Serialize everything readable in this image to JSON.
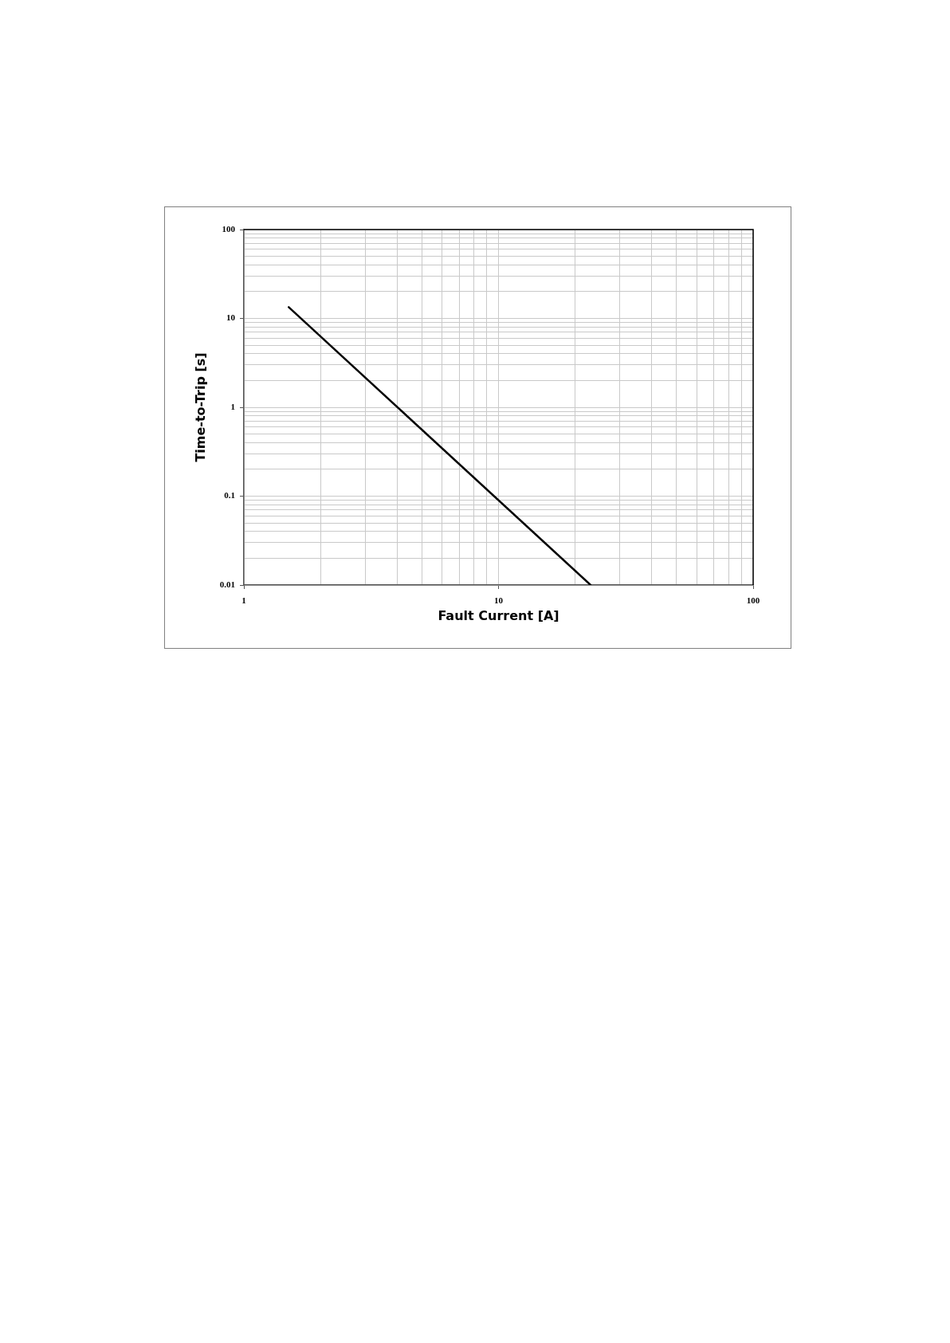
{
  "chart_data": {
    "type": "line",
    "xlabel": "Fault Current [A]",
    "ylabel": "Time-to-Trip [s]",
    "x": [
      1.5,
      23
    ],
    "series": [
      {
        "color": "#000000",
        "values": [
          13.4,
          0.01
        ]
      }
    ],
    "log": "xy",
    "xlim": [
      1,
      100
    ],
    "ylim": [
      0.01,
      100
    ],
    "xticks": [
      1,
      {
        "value": 2,
        "label": null
      },
      {
        "value": 3,
        "label": null
      },
      {
        "value": 4,
        "label": null
      },
      {
        "value": 5,
        "label": null
      },
      {
        "value": 6,
        "label": null
      },
      {
        "value": 7,
        "label": null
      },
      {
        "value": 8,
        "label": null
      },
      {
        "value": 9,
        "label": null
      },
      10,
      {
        "value": 20,
        "label": null
      },
      {
        "value": 30,
        "label": null
      },
      {
        "value": 40,
        "label": null
      },
      {
        "value": 50,
        "label": null
      },
      {
        "value": 60,
        "label": null
      },
      {
        "value": 70,
        "label": null
      },
      {
        "value": 80,
        "label": null
      },
      {
        "value": 90,
        "label": null
      },
      100
    ],
    "yticks": [
      0.01,
      {
        "value": 0.02,
        "label": null
      },
      {
        "value": 0.03,
        "label": null
      },
      {
        "value": 0.04,
        "label": null
      },
      {
        "value": 0.05,
        "label": null
      },
      {
        "value": 0.06,
        "label": null
      },
      {
        "value": 0.07,
        "label": null
      },
      {
        "value": 0.08,
        "label": null
      },
      {
        "value": 0.09,
        "label": null
      },
      0.1,
      {
        "value": 0.2,
        "label": null
      },
      {
        "value": 0.3,
        "label": null
      },
      {
        "value": 0.4,
        "label": null
      },
      {
        "value": 0.5,
        "label": null
      },
      {
        "value": 0.6,
        "label": null
      },
      {
        "value": 0.7,
        "label": null
      },
      {
        "value": 0.8,
        "label": null
      },
      {
        "value": 0.9,
        "label": null
      },
      1,
      {
        "value": 2,
        "label": null
      },
      {
        "value": 3,
        "label": null
      },
      {
        "value": 4,
        "label": null
      },
      {
        "value": 5,
        "label": null
      },
      {
        "value": 6,
        "label": null
      },
      {
        "value": 7,
        "label": null
      },
      {
        "value": 8,
        "label": null
      },
      {
        "value": 9,
        "label": null
      },
      10,
      {
        "value": 20,
        "label": null
      },
      {
        "value": 30,
        "label": null
      },
      {
        "value": 40,
        "label": null
      },
      {
        "value": 50,
        "label": null
      },
      {
        "value": 60,
        "label": null
      },
      {
        "value": 70,
        "label": null
      },
      {
        "value": 80,
        "label": null
      },
      {
        "value": 90,
        "label": null
      },
      100
    ],
    "grid": true,
    "legend": false,
    "marker": "none"
  }
}
